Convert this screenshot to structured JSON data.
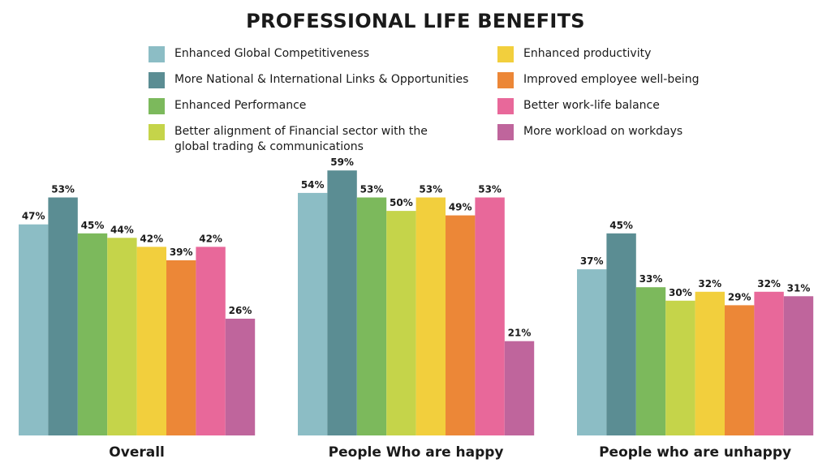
{
  "chart_data": {
    "type": "bar",
    "title": "PROFESSIONAL LIFE BENEFITS",
    "categories": [
      "Overall",
      "People Who are happy",
      "People who are unhappy"
    ],
    "value_suffix": "%",
    "ylim": [
      0,
      65
    ],
    "grid": false,
    "legend_position": "top",
    "series": [
      {
        "name": "Enhanced Global Competitiveness",
        "color": "#8cbdc5",
        "values": [
          47,
          54,
          37
        ]
      },
      {
        "name": "More National & International Links & Opportunities",
        "color": "#5b8d93",
        "values": [
          53,
          59,
          45
        ]
      },
      {
        "name": "Enhanced Performance",
        "color": "#7cb95c",
        "values": [
          45,
          53,
          33
        ]
      },
      {
        "name": "Better alignment of Financial sector with the global trading & communications",
        "color": "#c5d44a",
        "values": [
          44,
          50,
          30
        ]
      },
      {
        "name": "Enhanced productivity",
        "color": "#f2cf3d",
        "values": [
          42,
          53,
          32
        ]
      },
      {
        "name": "Improved employee well-being",
        "color": "#ec8737",
        "values": [
          39,
          49,
          29
        ]
      },
      {
        "name": "Better work-life balance",
        "color": "#e8689a",
        "values": [
          42,
          53,
          32
        ]
      },
      {
        "name": "More workload on workdays",
        "color": "#bf659c",
        "values": [
          26,
          21,
          31
        ]
      }
    ]
  }
}
